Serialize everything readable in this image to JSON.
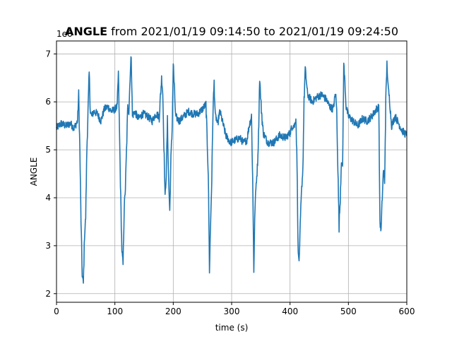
{
  "chart_data": {
    "type": "line",
    "title_bold": "ANGLE",
    "title_rest": " from 2021/01/19 09:14:50 to 2021/01/19 09:24:50",
    "xlabel": "time (s)",
    "ylabel": "ANGLE",
    "offset_label": "1e6",
    "xlim": [
      0,
      600
    ],
    "ylim": [
      1.82,
      7.27
    ],
    "xticks": [
      0,
      100,
      200,
      300,
      400,
      500,
      600
    ],
    "yticks": [
      2,
      3,
      4,
      5,
      6,
      7
    ],
    "grid": true,
    "series_color": "#1f77b4",
    "series": [
      {
        "x": [
          0,
          8,
          16,
          24,
          30,
          36,
          38,
          40,
          42,
          44,
          46,
          48,
          50,
          52,
          54,
          56,
          58,
          60,
          64,
          70,
          76,
          82,
          88,
          94,
          100,
          104,
          106,
          108,
          110,
          112,
          114,
          116,
          118,
          120,
          122,
          124,
          126,
          128,
          130,
          134,
          140,
          148,
          156,
          164,
          170,
          176,
          180,
          182,
          184,
          186,
          188,
          190,
          192,
          194,
          196,
          198,
          200,
          204,
          210,
          218,
          226,
          234,
          242,
          250,
          256,
          260,
          262,
          264,
          266,
          268,
          270,
          272,
          274,
          276,
          278,
          280,
          284,
          290,
          298,
          306,
          314,
          320,
          326,
          330,
          334,
          336,
          338,
          340,
          342,
          344,
          346,
          348,
          350,
          354,
          362,
          372,
          382,
          392,
          400,
          404,
          408,
          410,
          412,
          414,
          416,
          418,
          420,
          422,
          424,
          426,
          430,
          438,
          446,
          454,
          462,
          468,
          474,
          478,
          480,
          482,
          484,
          486,
          488,
          490,
          492,
          494,
          496,
          500,
          508,
          516,
          524,
          532,
          540,
          548,
          552,
          554,
          556,
          558,
          560,
          562,
          564,
          566,
          568,
          570,
          574,
          580,
          586,
          592,
          600
        ],
        "values": [
          5.45,
          5.55,
          5.5,
          5.55,
          5.45,
          5.6,
          6.15,
          5.0,
          3.5,
          2.4,
          2.2,
          3.2,
          3.6,
          5.0,
          5.8,
          6.6,
          5.8,
          5.7,
          5.8,
          5.75,
          5.6,
          5.85,
          5.9,
          5.8,
          5.85,
          5.9,
          6.6,
          5.3,
          4.0,
          2.9,
          2.6,
          3.8,
          4.2,
          5.0,
          5.9,
          5.8,
          6.5,
          7.0,
          5.7,
          5.8,
          5.65,
          5.75,
          5.7,
          5.6,
          5.75,
          5.7,
          6.5,
          6.2,
          5.1,
          4.0,
          4.5,
          5.6,
          4.4,
          3.7,
          4.8,
          5.4,
          6.8,
          5.7,
          5.6,
          5.7,
          5.8,
          5.75,
          5.75,
          5.85,
          5.95,
          4.5,
          2.5,
          3.5,
          4.4,
          5.8,
          6.4,
          5.7,
          5.65,
          5.5,
          5.7,
          5.8,
          5.6,
          5.3,
          5.15,
          5.2,
          5.25,
          5.15,
          5.2,
          5.5,
          5.7,
          4.4,
          2.5,
          3.8,
          4.3,
          4.6,
          5.3,
          6.5,
          6.0,
          5.35,
          5.15,
          5.15,
          5.3,
          5.25,
          5.35,
          5.5,
          5.5,
          5.7,
          4.7,
          2.8,
          2.7,
          3.6,
          4.2,
          4.6,
          6.0,
          6.7,
          6.15,
          6.0,
          6.1,
          6.15,
          6.05,
          5.9,
          5.85,
          6.2,
          5.8,
          4.6,
          3.4,
          4.0,
          4.8,
          4.6,
          6.8,
          6.4,
          5.9,
          5.7,
          5.6,
          5.5,
          5.65,
          5.6,
          5.7,
          5.85,
          5.9,
          3.5,
          3.3,
          4.0,
          4.6,
          4.3,
          6.0,
          6.8,
          6.3,
          6.1,
          5.5,
          5.7,
          5.55,
          5.4,
          5.3
        ]
      }
    ]
  }
}
